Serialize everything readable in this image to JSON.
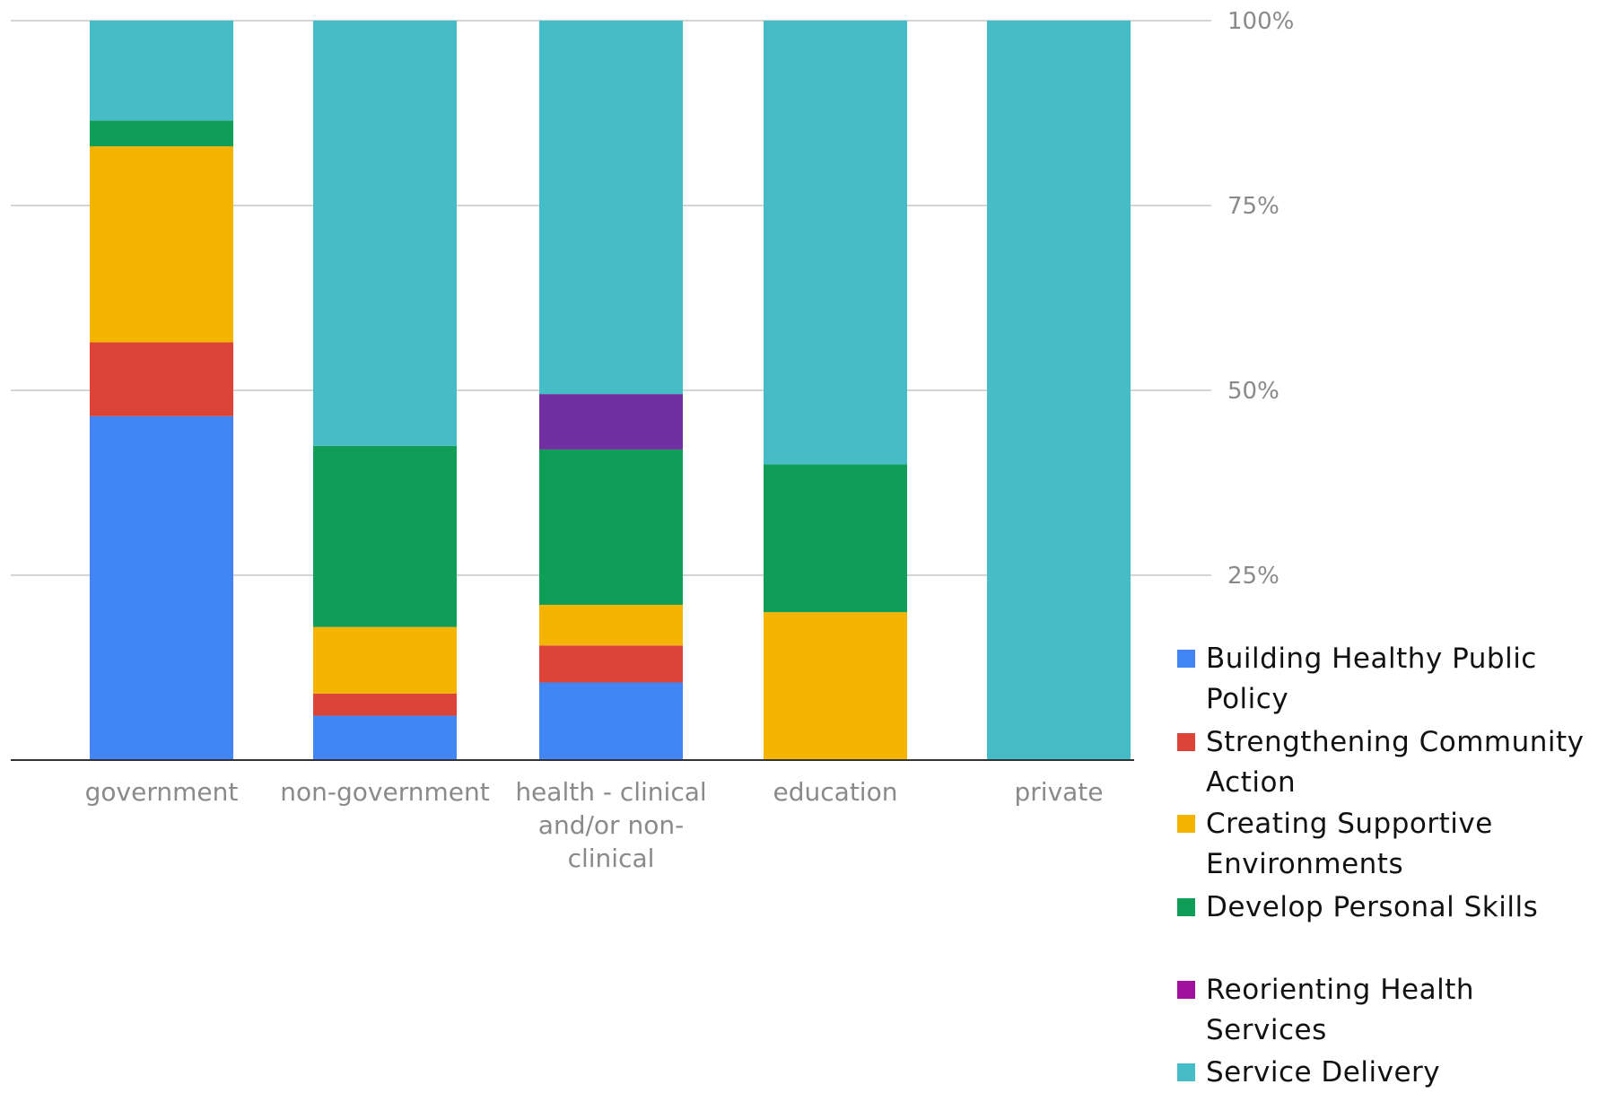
{
  "chart_data": {
    "type": "bar",
    "stacked": true,
    "normalized": true,
    "categories": [
      "government",
      "non-government",
      "health - clinical and/or non-clinical",
      "education",
      "private"
    ],
    "category_label_lines": [
      [
        "government"
      ],
      [
        "non-government"
      ],
      [
        "health - clinical",
        "and/or non-",
        "clinical"
      ],
      [
        "education"
      ],
      [
        "private"
      ]
    ],
    "series": [
      {
        "name": "Building Healthy Public Policy",
        "color": "#4285f4",
        "values": [
          46.5,
          6,
          10.5,
          0,
          0
        ]
      },
      {
        "name": "Strengthening Community Action",
        "color": "#db4437",
        "values": [
          10,
          3,
          5,
          0,
          0
        ]
      },
      {
        "name": "Creating Supportive Environments",
        "color": "#f4b400",
        "values": [
          26.5,
          9,
          5.5,
          20,
          0
        ]
      },
      {
        "name": "Develop Personal Skills",
        "color": "#0f9d58",
        "values": [
          3.5,
          24.5,
          21,
          20,
          0
        ]
      },
      {
        "name": "Reorienting Health Services",
        "color": "#7030a0",
        "values": [
          0,
          0,
          7.5,
          0,
          0
        ]
      },
      {
        "name": "Service Delivery",
        "color": "#46bdc6",
        "values": [
          13.5,
          57.5,
          50.5,
          60,
          100
        ]
      }
    ],
    "legend_label_lines": [
      [
        "Building Healthy Public",
        "Policy"
      ],
      [
        "Strengthening Community",
        "Action"
      ],
      [
        "Creating Supportive",
        "Environments"
      ],
      [
        "Develop Personal Skills"
      ],
      [
        "Reorienting Health Services"
      ],
      [
        "Service Delivery"
      ]
    ],
    "legend_swatch_colors": [
      "#4285f4",
      "#db4437",
      "#f4b400",
      "#0f9d58",
      "#a0119e",
      "#46bdc6"
    ],
    "y_axis": {
      "position": "right",
      "ticks": [
        25,
        50,
        75,
        100
      ],
      "tick_labels": [
        "25%",
        "50%",
        "75%",
        "100%"
      ],
      "range": [
        0,
        100
      ]
    },
    "legend_position": "bottom-right",
    "grid": true,
    "title": "",
    "xlabel": "",
    "ylabel": ""
  }
}
